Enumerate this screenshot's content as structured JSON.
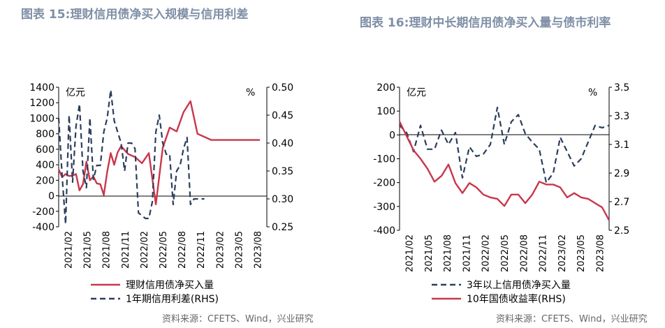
{
  "header": {
    "left_title": "图表 15:理财信用债净买入规模与信用利差",
    "right_title": "图表 16:理财中长期信用债净买入量与债市利率"
  },
  "footer": {
    "left_source": "资料来源：CFETS、Wind，兴业研究",
    "right_source": "资料来源：CFETS、Wind，兴业研究"
  },
  "colors": {
    "red": "#c8374b",
    "navy": "#2c3e5c"
  },
  "chart_data": [
    {
      "type": "line",
      "y_left_unit": "亿元",
      "y_right_unit": "%",
      "ylim_left": [
        -400,
        1400
      ],
      "yticks_left": [
        "1400",
        "1200",
        "1000",
        "800",
        "600",
        "400",
        "200",
        "0",
        "-200",
        "-400"
      ],
      "ylim_right": [
        0.25,
        0.5
      ],
      "yticks_right": [
        "0.50",
        "0.45",
        "0.40",
        "0.35",
        "0.30",
        "0.25"
      ],
      "x_tick_labels": [
        "2021/02",
        "2021/05",
        "2021/08",
        "2021/11",
        "2022/02",
        "2022/05",
        "2022/08",
        "2022/11",
        "2023/02",
        "2023/05",
        "2023/08"
      ],
      "x_range": [
        0,
        30
      ],
      "series": [
        {
          "name": "理财信用债净买入量",
          "axis": "left",
          "style": "solid",
          "x": [
            0,
            0.5,
            1,
            1.5,
            2,
            2.5,
            3,
            3.5,
            4,
            4.5,
            5,
            5.5,
            6,
            6.5,
            7,
            7.5,
            8,
            8.5,
            9,
            10,
            11,
            12,
            13,
            14,
            15,
            16,
            17,
            18,
            19,
            20,
            21,
            22,
            23,
            24,
            25,
            26,
            27,
            28,
            29
          ],
          "values": [
            340,
            240,
            280,
            255,
            260,
            280,
            70,
            150,
            440,
            200,
            250,
            160,
            150,
            10,
            310,
            550,
            400,
            560,
            640,
            540,
            500,
            420,
            550,
            -110,
            620,
            880,
            830,
            1080,
            1220,
            800,
            760,
            720,
            720,
            720,
            720,
            720,
            720,
            720,
            720
          ]
        },
        {
          "name": "1年期信用利差(RHS)",
          "axis": "right",
          "style": "dashed",
          "x": [
            0,
            0.5,
            1,
            1.5,
            2,
            2.5,
            3,
            3.5,
            4,
            4.5,
            5,
            5.5,
            6,
            6.5,
            7,
            7.5,
            8,
            8.5,
            9,
            9.5,
            10,
            10.5,
            11,
            11.5,
            12,
            12.5,
            13,
            13.5,
            14,
            14.5,
            15,
            15.5,
            16,
            16.5,
            17,
            17.5,
            18,
            18.5,
            19,
            19.5,
            20,
            20.5,
            21
          ],
          "values": [
            0.445,
            0.34,
            0.255,
            0.45,
            0.33,
            0.43,
            0.47,
            0.35,
            0.32,
            0.445,
            0.335,
            0.36,
            0.36,
            0.42,
            0.445,
            0.495,
            0.44,
            0.42,
            0.4,
            0.35,
            0.4,
            0.4,
            0.39,
            0.275,
            0.27,
            0.265,
            0.265,
            0.295,
            0.42,
            0.45,
            0.4,
            0.38,
            0.38,
            0.29,
            0.35,
            0.36,
            0.39,
            0.41,
            0.29,
            0.3,
            0.3,
            0.3,
            0.3
          ]
        }
      ],
      "legend_position": "bottom"
    },
    {
      "type": "line",
      "y_left_unit": "亿元",
      "y_right_unit": "%",
      "ylim_left": [
        -400,
        200
      ],
      "yticks_left": [
        "200",
        "100",
        "0",
        "-100",
        "-200",
        "-300",
        "-400"
      ],
      "ylim_right": [
        2.5,
        3.5
      ],
      "yticks_right": [
        "3.5",
        "3.3",
        "3.1",
        "2.9",
        "2.7",
        "2.5"
      ],
      "x_tick_labels": [
        "2021/02",
        "2021/05",
        "2021/08",
        "2021/11",
        "2022/02",
        "2022/05",
        "2022/08",
        "2022/11",
        "2023/02",
        "2023/05",
        "2023/08"
      ],
      "x_range": [
        0,
        30
      ],
      "series": [
        {
          "name": "3年以上信用债净买入量",
          "axis": "left",
          "style": "dashed",
          "x": [
            0,
            1,
            2,
            3,
            4,
            5,
            6,
            7,
            8,
            9,
            10,
            11,
            12,
            13,
            14,
            15,
            16,
            17,
            18,
            19,
            20,
            21,
            22,
            23,
            24,
            25,
            26,
            27,
            28,
            29,
            30
          ],
          "values": [
            40,
            10,
            -70,
            40,
            -60,
            -60,
            20,
            -40,
            10,
            -180,
            -50,
            -90,
            -80,
            -40,
            115,
            -40,
            55,
            85,
            5,
            -30,
            -60,
            -200,
            -160,
            -10,
            -70,
            -130,
            -100,
            -30,
            40,
            30,
            40
          ]
        },
        {
          "name": "10年国债收益率(RHS)",
          "axis": "right",
          "style": "solid",
          "x": [
            0,
            1,
            2,
            3,
            4,
            5,
            6,
            7,
            8,
            9,
            10,
            11,
            12,
            13,
            14,
            15,
            16,
            17,
            18,
            19,
            20,
            21,
            22,
            23,
            24,
            25,
            26,
            27,
            28,
            29,
            30
          ],
          "values": [
            3.26,
            3.16,
            3.06,
            3.0,
            2.93,
            2.84,
            2.88,
            2.96,
            2.83,
            2.76,
            2.83,
            2.8,
            2.75,
            2.73,
            2.72,
            2.67,
            2.75,
            2.75,
            2.69,
            2.75,
            2.84,
            2.82,
            2.82,
            2.8,
            2.73,
            2.76,
            2.73,
            2.72,
            2.69,
            2.66,
            2.57
          ]
        }
      ],
      "legend_position": "bottom"
    }
  ]
}
